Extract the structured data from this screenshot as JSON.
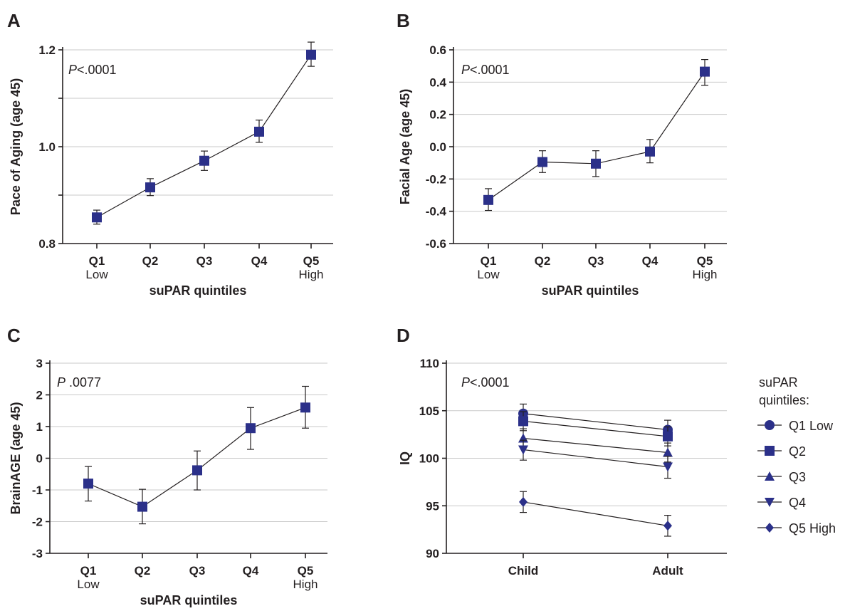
{
  "colors": {
    "marker": "#2b3089",
    "text": "#231f20",
    "grid": "#c9c9c9"
  },
  "chart_data": [
    {
      "panel": "A",
      "type": "line",
      "ylabel": "Pace of Aging (age 45)",
      "xlabel": "suPAR quintiles",
      "p_label": {
        "italic": "P",
        "rest": "<.0001"
      },
      "categories": [
        "Q1",
        "Q2",
        "Q3",
        "Q4",
        "Q5"
      ],
      "category_sublabels": [
        "Low",
        "",
        "",
        "",
        "High"
      ],
      "values": [
        0.854,
        0.916,
        0.971,
        1.031,
        1.19
      ],
      "err_low": [
        0.84,
        0.899,
        0.951,
        1.009,
        1.166
      ],
      "err_high": [
        0.869,
        0.934,
        0.991,
        1.055,
        1.216
      ],
      "ylim": [
        0.8,
        1.2
      ],
      "yticks": [
        0.8,
        1.0,
        1.2
      ],
      "ytick_labels": [
        "0.8",
        "1.0",
        "1.2"
      ],
      "ygrid": [
        0.9,
        1.0,
        1.1,
        1.2
      ],
      "marker": "square",
      "grid": true
    },
    {
      "panel": "B",
      "type": "line",
      "ylabel": "Facial Age (age 45)",
      "xlabel": "suPAR quintiles",
      "p_label": {
        "italic": "P",
        "rest": "<.0001"
      },
      "categories": [
        "Q1",
        "Q2",
        "Q3",
        "Q4",
        "Q5"
      ],
      "category_sublabels": [
        "Low",
        "",
        "",
        "",
        "High"
      ],
      "values": [
        -0.33,
        -0.095,
        -0.105,
        -0.03,
        0.465
      ],
      "err_low": [
        -0.395,
        -0.16,
        -0.185,
        -0.1,
        0.38
      ],
      "err_high": [
        -0.26,
        -0.025,
        -0.025,
        0.045,
        0.54
      ],
      "ylim": [
        -0.6,
        0.6
      ],
      "yticks": [
        -0.6,
        -0.4,
        -0.2,
        0.0,
        0.2,
        0.4,
        0.6
      ],
      "ytick_labels": [
        "-0.6",
        "-0.4",
        "-0.2",
        "0.0",
        "0.2",
        "0.4",
        "0.6"
      ],
      "ygrid": [
        -0.4,
        -0.2,
        0.0,
        0.2,
        0.4,
        0.6
      ],
      "marker": "square",
      "grid": true
    },
    {
      "panel": "C",
      "type": "line",
      "ylabel": "BrainAGE (age 45)",
      "xlabel": "suPAR quintiles",
      "p_label": {
        "italic": "P",
        "rest": " .0077"
      },
      "categories": [
        "Q1",
        "Q2",
        "Q3",
        "Q4",
        "Q5"
      ],
      "category_sublabels": [
        "Low",
        "",
        "",
        "",
        "High"
      ],
      "values": [
        -0.8,
        -1.53,
        -0.38,
        0.95,
        1.6
      ],
      "err_low": [
        -1.35,
        -2.07,
        -1.0,
        0.28,
        0.95
      ],
      "err_high": [
        -0.26,
        -0.98,
        0.23,
        1.6,
        2.27
      ],
      "ylim": [
        -3,
        3
      ],
      "yticks": [
        -3,
        -2,
        -1,
        0,
        1,
        2,
        3
      ],
      "ytick_labels": [
        "-3",
        "-2",
        "-1",
        "0",
        "1",
        "2",
        "3"
      ],
      "ygrid": [
        -2,
        -1,
        0,
        1,
        2,
        3
      ],
      "marker": "square",
      "grid": true
    },
    {
      "panel": "D",
      "type": "line",
      "ylabel": "IQ",
      "xlabel": "",
      "p_label": {
        "italic": "P",
        "rest": "<.0001"
      },
      "categories": [
        "Child",
        "Adult"
      ],
      "ylim": [
        90,
        110
      ],
      "yticks": [
        90,
        95,
        100,
        105,
        110
      ],
      "ytick_labels": [
        "90",
        "95",
        "100",
        "105",
        "110"
      ],
      "ygrid": [
        95,
        100,
        105,
        110
      ],
      "grid": true,
      "legend_title": [
        "suPAR",
        "quintiles:"
      ],
      "legend_position": "right",
      "series": [
        {
          "name": "Q1 Low",
          "marker": "circle",
          "values": [
            104.7,
            103.0
          ],
          "err_low": [
            103.6,
            102.0
          ],
          "err_high": [
            105.7,
            104.0
          ]
        },
        {
          "name": "Q2",
          "marker": "square",
          "values": [
            103.9,
            102.3
          ],
          "err_low": [
            102.9,
            101.3
          ],
          "err_high": [
            104.9,
            103.3
          ]
        },
        {
          "name": "Q3",
          "marker": "triangle-up",
          "values": [
            102.1,
            100.6
          ],
          "err_low": [
            101.1,
            99.6
          ],
          "err_high": [
            103.1,
            101.6
          ]
        },
        {
          "name": "Q4",
          "marker": "triangle-down",
          "values": [
            100.9,
            99.1
          ],
          "err_low": [
            99.8,
            97.9
          ],
          "err_high": [
            101.9,
            100.2
          ]
        },
        {
          "name": "Q5 High",
          "marker": "diamond",
          "values": [
            95.4,
            92.9
          ],
          "err_low": [
            94.3,
            91.8
          ],
          "err_high": [
            96.5,
            94.0
          ]
        }
      ]
    }
  ]
}
